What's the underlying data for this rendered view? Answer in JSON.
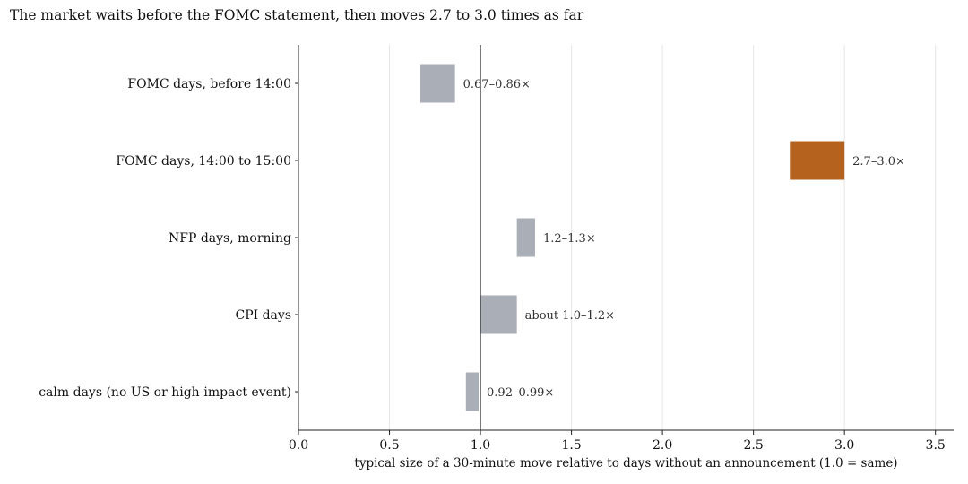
{
  "chart_data": {
    "type": "bar",
    "orientation": "horizontal",
    "variant": "floating-range",
    "title": "The market waits before the FOMC statement, then moves 2.7 to 3.0 times as far",
    "xlabel": "typical size of a 30-minute move relative to days without an announcement (1.0 = same)",
    "ylabel": "",
    "xlim": [
      0,
      3.6
    ],
    "xticks": [
      0.0,
      0.5,
      1.0,
      1.5,
      2.0,
      2.5,
      3.0,
      3.5
    ],
    "xtick_labels": [
      "0.0",
      "0.5",
      "1.0",
      "1.5",
      "2.0",
      "2.5",
      "3.0",
      "3.5"
    ],
    "reference_line": 1.0,
    "grid": "vertical",
    "categories": [
      "FOMC days, before 14:00",
      "FOMC days, 14:00 to 15:00",
      "NFP days, morning",
      "CPI days",
      "calm days (no US or high-impact event)"
    ],
    "ranges": [
      [
        0.67,
        0.86
      ],
      [
        2.7,
        3.0
      ],
      [
        1.2,
        1.3
      ],
      [
        1.0,
        1.2
      ],
      [
        0.92,
        0.99
      ]
    ],
    "labels": [
      "0.67–0.86×",
      "2.7–3.0×",
      "1.2–1.3×",
      "about 1.0–1.2×",
      "0.92–0.99×"
    ],
    "highlight_index": 1,
    "colors": {
      "default_bar": "#a9aeb7",
      "highlight_bar": "#b5621f",
      "reference_line": "#333333",
      "grid": "#e6e6e6",
      "axis": "#222222"
    }
  }
}
